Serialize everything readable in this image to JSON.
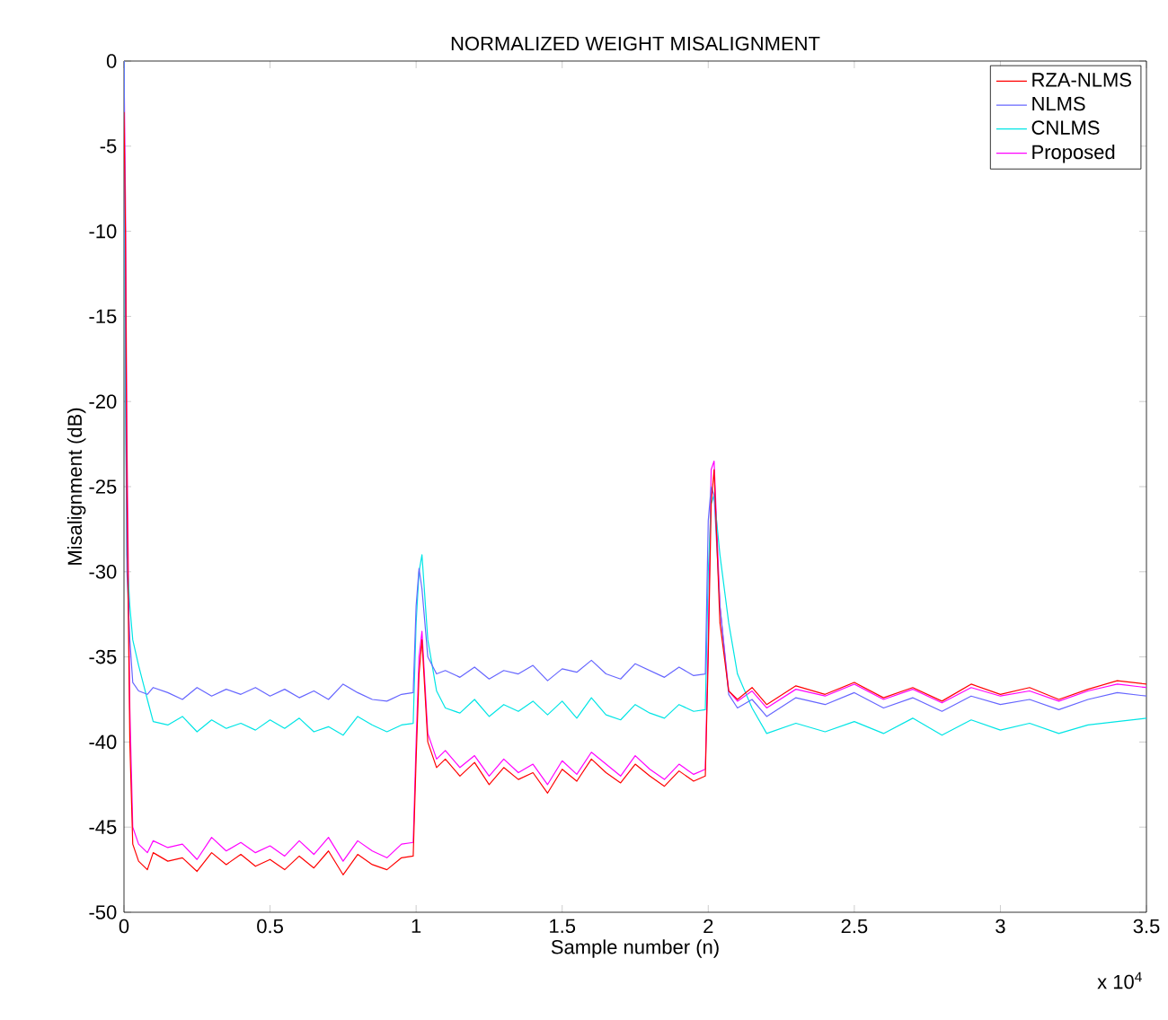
{
  "chart_data": {
    "type": "line",
    "title": "NORMALIZED WEIGHT MISALIGNMENT",
    "xlabel": "Sample number (n)",
    "ylabel": "Misalignment (dB)",
    "annotations": [
      "x 10$^{4}$"
    ],
    "x": [
      0,
      0.005,
      0.01,
      0.02,
      0.03,
      0.05,
      0.08,
      0.1,
      0.15,
      0.2,
      0.25,
      0.3,
      0.35,
      0.4,
      0.45,
      0.5,
      0.55,
      0.6,
      0.65,
      0.7,
      0.75,
      0.8,
      0.85,
      0.9,
      0.95,
      0.99,
      1.0,
      1.01,
      1.02,
      1.04,
      1.07,
      1.1,
      1.15,
      1.2,
      1.25,
      1.3,
      1.35,
      1.4,
      1.45,
      1.5,
      1.55,
      1.6,
      1.65,
      1.7,
      1.75,
      1.8,
      1.85,
      1.9,
      1.95,
      1.99,
      2.0,
      2.01,
      2.02,
      2.04,
      2.07,
      2.1,
      2.15,
      2.2,
      2.3,
      2.4,
      2.5,
      2.6,
      2.7,
      2.8,
      2.9,
      3.0,
      3.1,
      3.2,
      3.3,
      3.4,
      3.5
    ],
    "series": [
      {
        "name": "RZA-NLMS",
        "color": "#ff0000",
        "values": [
          -3,
          -10,
          -25,
          -40,
          -46,
          -47,
          -47.5,
          -46.5,
          -47,
          -46.8,
          -47.6,
          -46.5,
          -47.2,
          -46.6,
          -47.3,
          -46.9,
          -47.5,
          -46.7,
          -47.4,
          -46.4,
          -47.8,
          -46.6,
          -47.2,
          -47.5,
          -46.8,
          -46.7,
          -41,
          -36,
          -34,
          -40,
          -41.5,
          -41,
          -42,
          -41.2,
          -42.5,
          -41.5,
          -42.2,
          -41.8,
          -43,
          -41.6,
          -42.3,
          -41,
          -41.8,
          -42.4,
          -41.3,
          -42,
          -42.6,
          -41.7,
          -42.3,
          -42,
          -35,
          -26,
          -24,
          -33,
          -37,
          -37.5,
          -36.8,
          -37.8,
          -36.7,
          -37.2,
          -36.5,
          -37.4,
          -36.8,
          -37.6,
          -36.6,
          -37.2,
          -36.8,
          -37.5,
          -36.9,
          -36.4,
          -36.6
        ]
      },
      {
        "name": "NLMS",
        "color": "#6666ff",
        "values": [
          0,
          -15,
          -30,
          -34,
          -36.5,
          -37,
          -37.2,
          -36.8,
          -37.1,
          -37.5,
          -36.8,
          -37.3,
          -36.9,
          -37.2,
          -36.8,
          -37.3,
          -36.9,
          -37.4,
          -37,
          -37.5,
          -36.6,
          -37.1,
          -37.5,
          -37.6,
          -37.2,
          -37.1,
          -32,
          -29.8,
          -31,
          -35,
          -36,
          -35.8,
          -36.2,
          -35.6,
          -36.3,
          -35.8,
          -36,
          -35.5,
          -36.4,
          -35.7,
          -35.9,
          -35.2,
          -36,
          -36.3,
          -35.4,
          -35.8,
          -36.2,
          -35.6,
          -36.1,
          -36,
          -27,
          -25,
          -25.5,
          -32,
          -37.2,
          -38,
          -37.5,
          -38.5,
          -37.4,
          -37.8,
          -37.1,
          -38,
          -37.4,
          -38.2,
          -37.3,
          -37.8,
          -37.5,
          -38.1,
          -37.5,
          -37.1,
          -37.3
        ]
      },
      {
        "name": "CNLMS",
        "color": "#00e5e5",
        "values": [
          0,
          -20,
          -29,
          -32,
          -34,
          -35.5,
          -37.5,
          -38.8,
          -39,
          -38.5,
          -39.4,
          -38.7,
          -39.2,
          -38.9,
          -39.3,
          -38.7,
          -39.2,
          -38.6,
          -39.4,
          -39.1,
          -39.6,
          -38.5,
          -39,
          -39.4,
          -39,
          -38.9,
          -33,
          -30,
          -29,
          -34,
          -37,
          -38,
          -38.3,
          -37.5,
          -38.5,
          -37.8,
          -38.2,
          -37.6,
          -38.4,
          -37.6,
          -38.6,
          -37.4,
          -38.4,
          -38.7,
          -37.8,
          -38.3,
          -38.6,
          -37.8,
          -38.2,
          -38.1,
          -30,
          -26,
          -25.5,
          -29,
          -33,
          -36,
          -38,
          -39.5,
          -38.9,
          -39.4,
          -38.8,
          -39.5,
          -38.6,
          -39.6,
          -38.7,
          -39.3,
          -38.9,
          -39.5,
          -39,
          -38.8,
          -38.6
        ]
      },
      {
        "name": "Proposed",
        "color": "#ff00ff",
        "values": [
          0,
          -8,
          -22,
          -38,
          -45,
          -46,
          -46.5,
          -45.8,
          -46.2,
          -46,
          -46.9,
          -45.6,
          -46.4,
          -45.9,
          -46.5,
          -46.1,
          -46.7,
          -45.8,
          -46.6,
          -45.6,
          -47,
          -45.8,
          -46.4,
          -46.8,
          -46,
          -45.9,
          -40,
          -35,
          -33.5,
          -39.5,
          -41,
          -40.5,
          -41.5,
          -40.8,
          -42,
          -41,
          -41.8,
          -41.3,
          -42.5,
          -41.1,
          -41.9,
          -40.6,
          -41.3,
          -42,
          -40.8,
          -41.6,
          -42.2,
          -41.3,
          -41.9,
          -41.6,
          -34,
          -24,
          -23.5,
          -32,
          -37,
          -37.6,
          -37,
          -38,
          -36.9,
          -37.3,
          -36.6,
          -37.5,
          -36.9,
          -37.7,
          -36.8,
          -37.3,
          -37,
          -37.6,
          -37,
          -36.6,
          -36.8
        ]
      }
    ],
    "xlim": [
      0,
      3.5
    ],
    "ylim": [
      -50,
      0
    ],
    "xticks": [
      0,
      0.5,
      1,
      1.5,
      2,
      2.5,
      3,
      3.5
    ],
    "yticks": [
      -50,
      -45,
      -40,
      -35,
      -30,
      -25,
      -20,
      -15,
      -10,
      -5,
      0
    ],
    "legend": "top right"
  }
}
